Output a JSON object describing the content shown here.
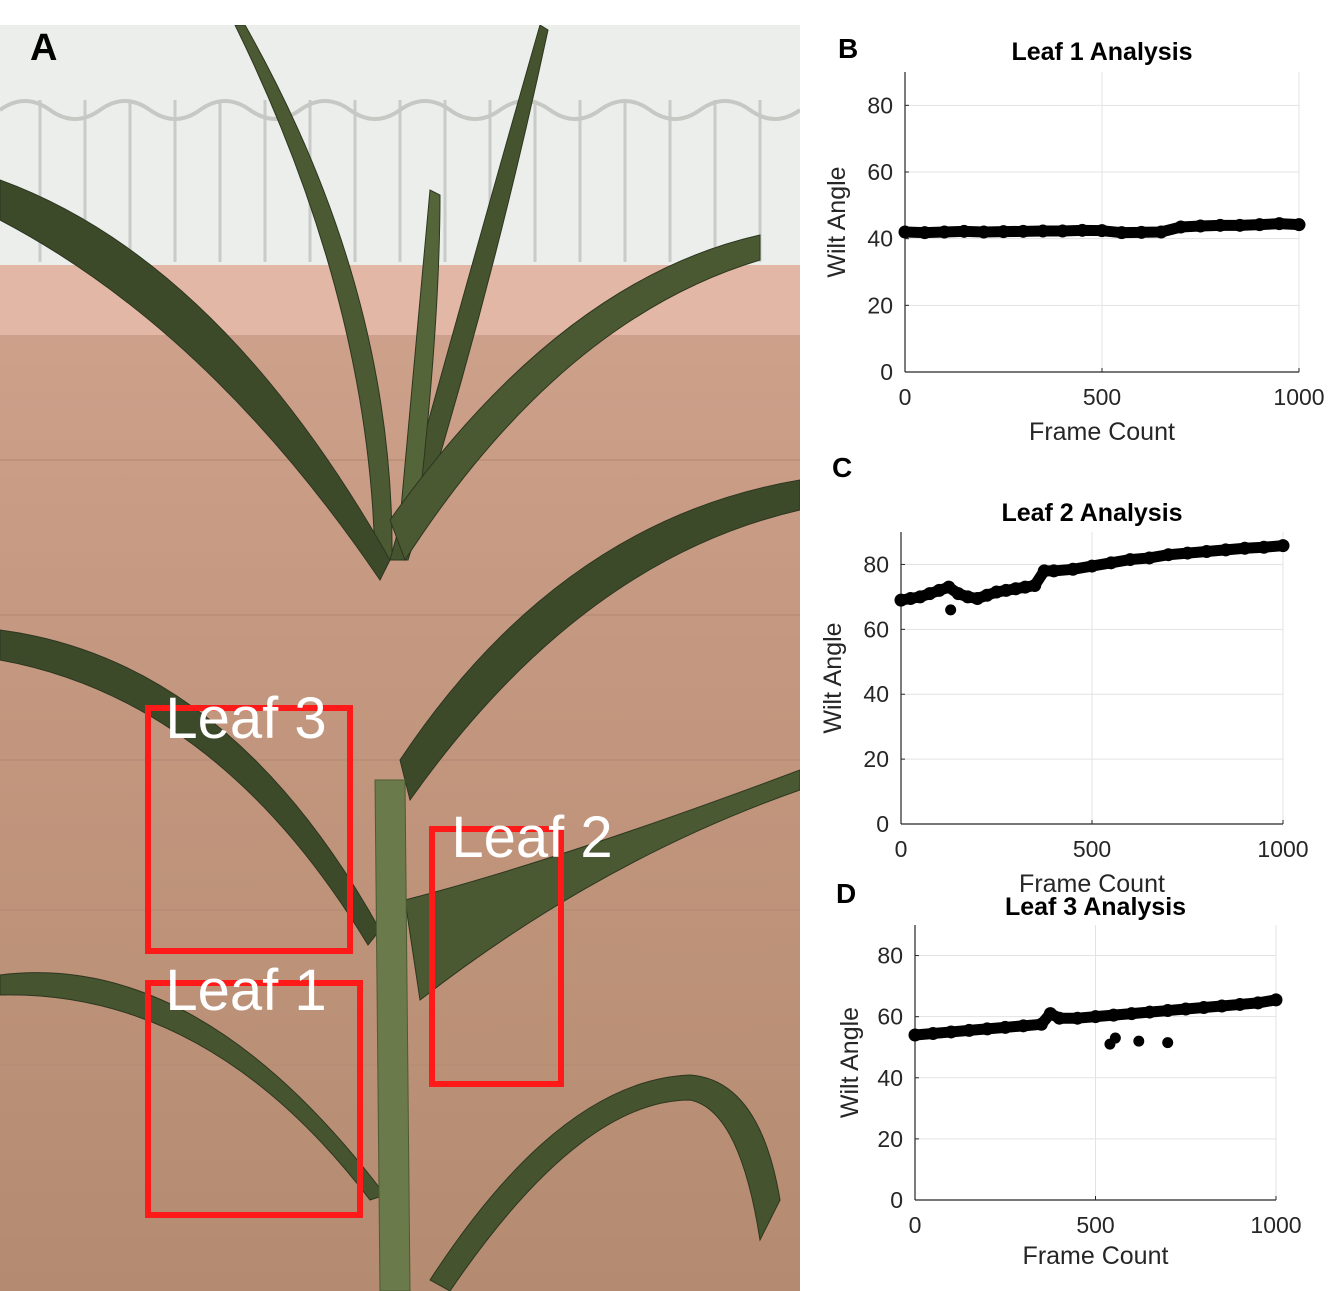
{
  "panels": {
    "a": "A",
    "b": "B",
    "c": "C",
    "d": "D"
  },
  "photo": {
    "boxes": [
      {
        "label": "Leaf 3"
      },
      {
        "label": "Leaf 2"
      },
      {
        "label": "Leaf 1"
      }
    ],
    "box_color": "#ff1a1a",
    "label_color": "#ffffff",
    "wall_color": "#c69a82",
    "roof_color": "#eef0ee",
    "leaf_color": "#3d4a2a"
  },
  "chart_data": [
    {
      "type": "scatter",
      "title": "Leaf 1 Analysis",
      "xlabel": "Frame Count",
      "ylabel": "Wilt Angle",
      "xlim": [
        0,
        1000
      ],
      "ylim": [
        0,
        90
      ],
      "xticks": [
        0,
        500,
        1000
      ],
      "yticks": [
        0,
        20,
        40,
        60,
        80
      ],
      "grid": true,
      "series": [
        {
          "x": [
            0,
            50,
            100,
            150,
            200,
            250,
            300,
            350,
            400,
            450,
            500,
            550,
            600,
            650,
            700,
            750,
            800,
            850,
            900,
            950,
            1000
          ],
          "y": [
            42,
            41.8,
            42,
            42.2,
            42,
            42.1,
            42.2,
            42.3,
            42.3,
            42.5,
            42.4,
            41.8,
            41.9,
            42,
            43.5,
            43.8,
            44,
            44,
            44.2,
            44.5,
            44.2
          ]
        }
      ]
    },
    {
      "type": "scatter",
      "title": "Leaf 2 Analysis",
      "xlabel": "Frame Count",
      "ylabel": "Wilt Angle",
      "xlim": [
        0,
        1000
      ],
      "ylim": [
        0,
        90
      ],
      "xticks": [
        0,
        500,
        1000
      ],
      "yticks": [
        0,
        20,
        40,
        60,
        80
      ],
      "grid": true,
      "series": [
        {
          "x": [
            0,
            25,
            50,
            75,
            100,
            125,
            150,
            175,
            200,
            225,
            250,
            275,
            300,
            325,
            350,
            375,
            400,
            450,
            500,
            550,
            600,
            650,
            700,
            750,
            800,
            850,
            900,
            950,
            1000,
            130
          ],
          "y": [
            69,
            69.5,
            70,
            71,
            72,
            73,
            71,
            70,
            69.5,
            70.5,
            71.5,
            72,
            72.5,
            73,
            73.5,
            78,
            78,
            78.5,
            79.5,
            80.5,
            81.5,
            82,
            83,
            83.5,
            84,
            84.5,
            85,
            85.3,
            85.8,
            66
          ]
        }
      ]
    },
    {
      "type": "scatter",
      "title": "Leaf 3 Analysis",
      "xlabel": "Frame Count",
      "ylabel": "Wilt Angle",
      "xlim": [
        0,
        1000
      ],
      "ylim": [
        0,
        90
      ],
      "xticks": [
        0,
        500,
        1000
      ],
      "yticks": [
        0,
        20,
        40,
        60,
        80
      ],
      "grid": true,
      "series": [
        {
          "x": [
            0,
            50,
            100,
            150,
            200,
            250,
            300,
            350,
            375,
            400,
            450,
            500,
            550,
            600,
            650,
            700,
            750,
            800,
            850,
            900,
            950,
            1000,
            540,
            555,
            620,
            700
          ],
          "y": [
            54,
            54.5,
            55,
            55.5,
            56,
            56.5,
            57,
            57.5,
            61,
            59.5,
            59.5,
            60,
            60.5,
            61,
            61.5,
            62,
            62.5,
            63,
            63.5,
            64,
            64.5,
            65.5,
            51,
            53,
            52,
            51.5
          ]
        }
      ]
    }
  ]
}
